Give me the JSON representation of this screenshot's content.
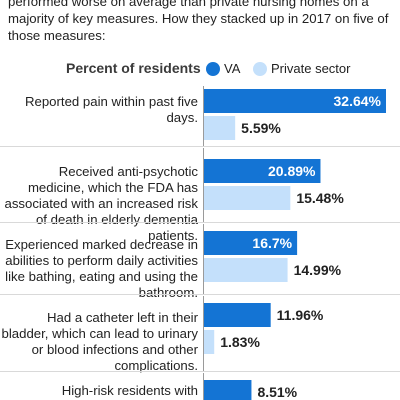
{
  "intro_text": "performed worse on average than private nursing homes on a majority of key measures. How they stacked up in 2017 on five of those measures:",
  "colors": {
    "va": "#1474d4",
    "private": "#c4e0fb",
    "va_label": "#ffffff",
    "private_label": "#222222"
  },
  "chart_data": {
    "type": "bar",
    "orientation": "horizontal",
    "legend": {
      "title": "Percent of residents",
      "placement": "top"
    },
    "categories": [
      "Reported pain within past five days.",
      "Received anti-psychotic medicine, which the FDA has associated with an increased risk of death in elderly dementia patients.",
      "Experienced marked decrease in abilities to perform daily activities like bathing, eating and using the bathroom.",
      "Had a catheter left in their bladder, which can lead to urinary or blood infections and other complications.",
      "High-risk residents with"
    ],
    "series": [
      {
        "name": "VA",
        "values": [
          32.64,
          20.89,
          16.7,
          11.96,
          8.51
        ],
        "labels": [
          "32.64%",
          "20.89%",
          "16.7%",
          "11.96%",
          "8.51%"
        ]
      },
      {
        "name": "Private sector",
        "values": [
          5.59,
          15.48,
          14.99,
          1.83,
          null
        ],
        "labels": [
          "5.59%",
          "15.48%",
          "14.99%",
          "1.83%",
          ""
        ]
      }
    ],
    "xlim": [
      0,
      33
    ],
    "grid": false
  }
}
